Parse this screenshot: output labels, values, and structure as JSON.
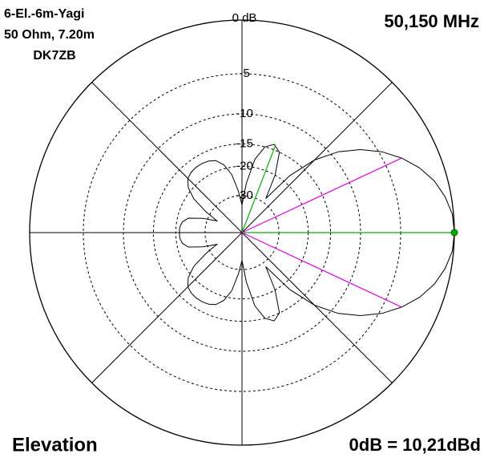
{
  "chart_data": {
    "type": "polar",
    "title_lines": [
      "6-El.-6m-Yagi",
      "50 Ohm, 7.20m",
      "DK7ZB"
    ],
    "frequency": "50,150 MHz",
    "plane": "Elevation",
    "reference": "0dB = 10,21dBd",
    "radial_scale": "arrl-log",
    "rticks": [
      {
        "value": 0,
        "label": "0 dB"
      },
      -5,
      -10,
      -15,
      -20,
      -30
    ],
    "color": "#000000",
    "angles": [
      0,
      5,
      10,
      15,
      20,
      25,
      30,
      35,
      40,
      45,
      50,
      55,
      60,
      65,
      70,
      75,
      80,
      85,
      90,
      95,
      100,
      105,
      110,
      115,
      120,
      125,
      130,
      135,
      140,
      145,
      150,
      155,
      160,
      165,
      170,
      175,
      180,
      185,
      190,
      195,
      200,
      205,
      210,
      215,
      220,
      225,
      230,
      235,
      240,
      245,
      250,
      255,
      260,
      265,
      270,
      275,
      280,
      285,
      290,
      295,
      300,
      305,
      310,
      315,
      320,
      325,
      330,
      335,
      340,
      345,
      350,
      355
    ],
    "values": [
      0,
      -0.1,
      -0.5,
      -1.1,
      -2,
      -3.2,
      -4.7,
      -6.6,
      -9,
      -12.5,
      -18,
      -28,
      -20,
      -15,
      -14,
      -15,
      -18,
      -25,
      -35,
      -28,
      -22,
      -19,
      -17.5,
      -17,
      -16.8,
      -16.8,
      -17,
      -17.5,
      -19,
      -22,
      -28,
      -35,
      -28,
      -23,
      -21.5,
      -21,
      -21,
      -21,
      -21.5,
      -23,
      -28,
      -35,
      -28,
      -22,
      -19,
      -17.5,
      -17,
      -16.8,
      -16.8,
      -17,
      -17.5,
      -19,
      -22,
      -28,
      -35,
      -25,
      -18,
      -15,
      -14,
      -15,
      -20,
      -28,
      -18,
      -12.5,
      -9,
      -6.6,
      -4.7,
      -3.2,
      -2,
      -1.1,
      -0.5,
      -0.1
    ],
    "markers": [
      {
        "angle": 0,
        "level": 0,
        "color": "#00b000"
      },
      {
        "angle": 69,
        "level": -14,
        "color": "#00b000"
      },
      {
        "angle": 25,
        "level": -3.2,
        "color": "#e000e0"
      },
      {
        "angle": -25,
        "level": -3.2,
        "color": "#e000e0"
      }
    ]
  }
}
